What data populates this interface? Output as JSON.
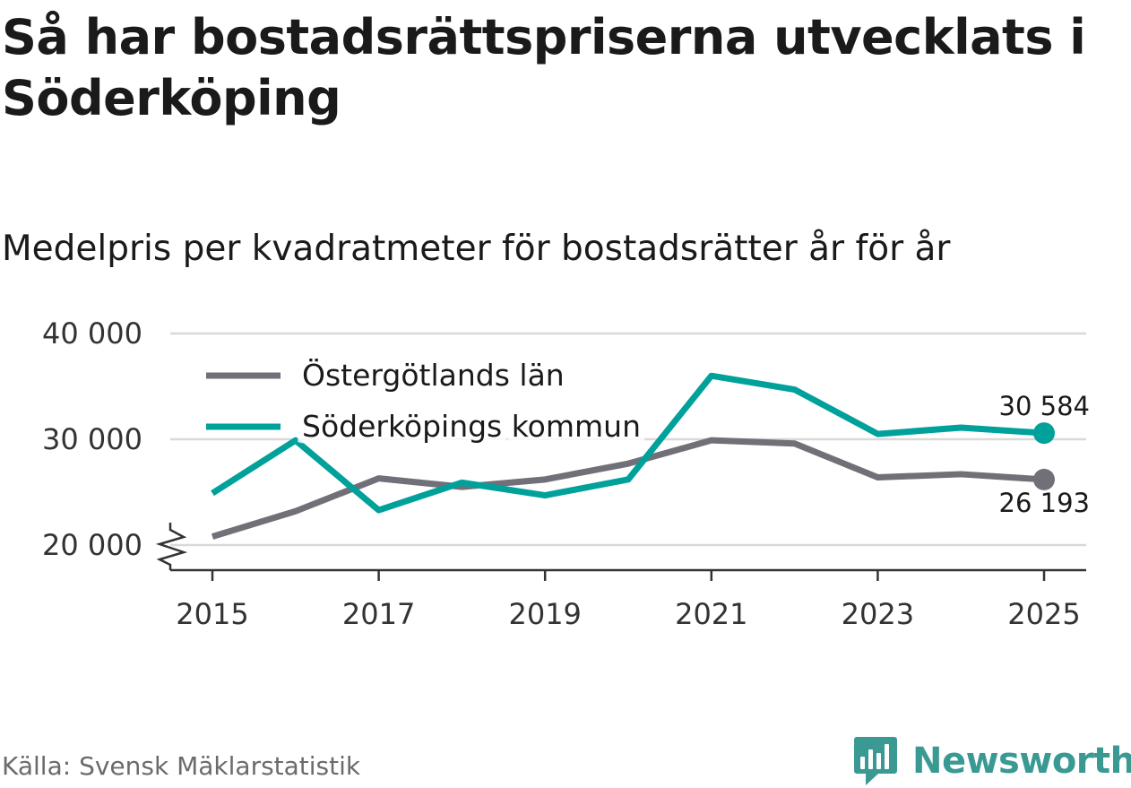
{
  "title": "Så har bostadsrättspriserna utvecklats i Söderköping",
  "subtitle": "Medelpris per kvadratmeter för bostadsrätter år för år",
  "source": "Källa: Svensk Mäklarstatistik",
  "brand": {
    "name": "Newsworthy",
    "color": "#3a9a93"
  },
  "chart_data": {
    "type": "line",
    "title": "Medelpris per kvadratmeter för bostadsrätter år för år",
    "xlabel": "",
    "ylabel": "",
    "x": [
      2015,
      2016,
      2017,
      2018,
      2019,
      2020,
      2021,
      2022,
      2023,
      2024,
      2025
    ],
    "x_ticks": [
      2015,
      2017,
      2019,
      2021,
      2023,
      2025
    ],
    "x_tick_labels": [
      "2015",
      "2017",
      "2019",
      "2021",
      "2023",
      "2025"
    ],
    "y_ticks": [
      20000,
      30000,
      40000
    ],
    "y_tick_labels": [
      "20 000",
      "30 000",
      "40 000"
    ],
    "ylim": [
      20000,
      40000
    ],
    "y_axis_break": true,
    "grid": true,
    "legend_position": "top-left",
    "series": [
      {
        "name": "Östergötlands län",
        "color": "#717078",
        "values": [
          20800,
          23200,
          26300,
          25500,
          26200,
          27700,
          29900,
          29600,
          26400,
          26700,
          26193
        ],
        "end_label": "26 193"
      },
      {
        "name": "Söderköpings kommun",
        "color": "#00a19a",
        "values": [
          24900,
          29900,
          23300,
          25900,
          24700,
          26200,
          36000,
          34700,
          30500,
          31100,
          30584
        ],
        "end_label": "30 584"
      }
    ]
  }
}
